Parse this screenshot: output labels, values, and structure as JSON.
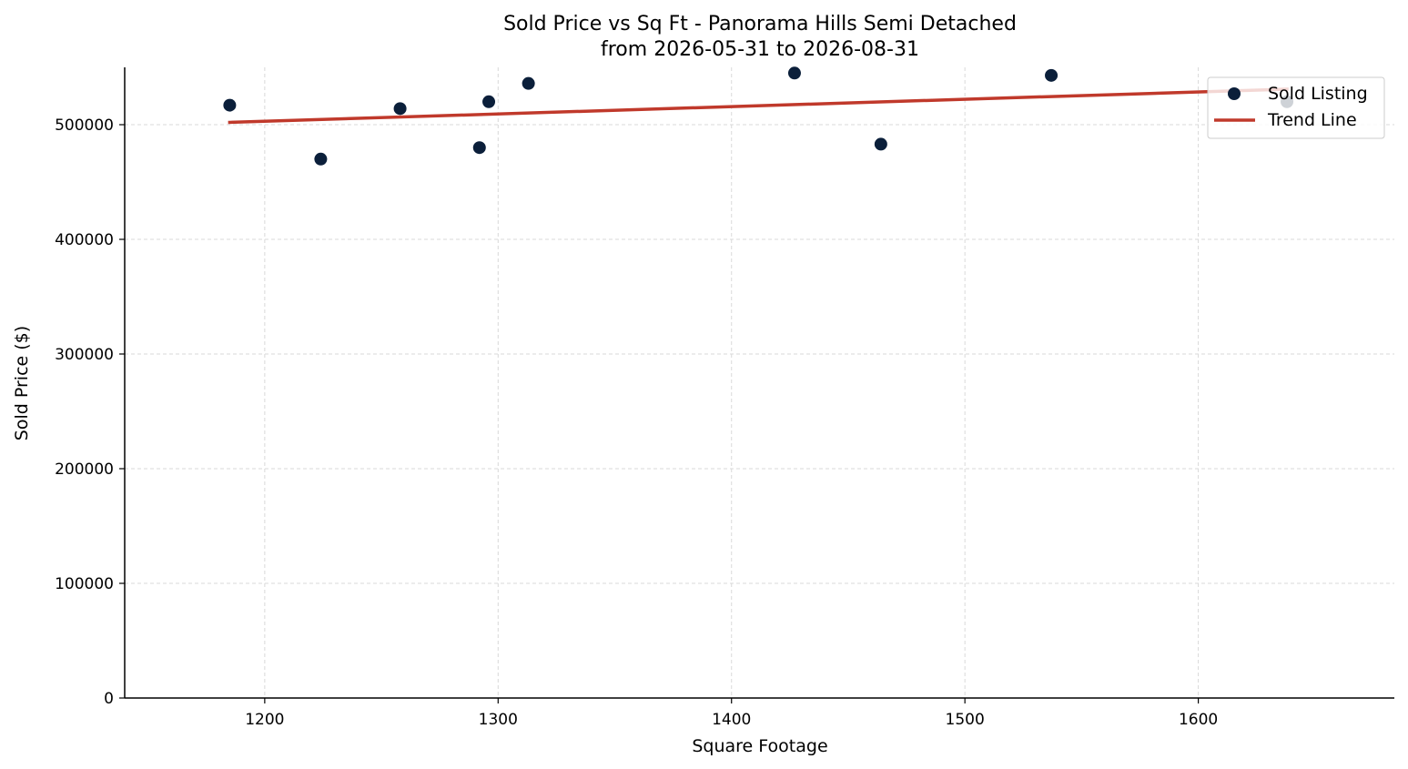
{
  "chart_data": {
    "type": "scatter",
    "title": "Sold Price vs Sq Ft - Panorama Hills Semi Detached",
    "subtitle": "from 2026-05-31 to 2026-08-31",
    "xlabel": "Square Footage",
    "ylabel": "Sold Price ($)",
    "xlim": [
      1140,
      1684
    ],
    "ylim": [
      0,
      550000
    ],
    "x_ticks": [
      1200,
      1300,
      1400,
      1500,
      1600
    ],
    "y_ticks": [
      0,
      100000,
      200000,
      300000,
      400000,
      500000
    ],
    "grid": true,
    "legend_position": "top-right",
    "series": [
      {
        "name": "Sold Listing",
        "kind": "scatter",
        "color": "#0b1f3a",
        "points": [
          {
            "x": 1185,
            "y": 517000
          },
          {
            "x": 1224,
            "y": 470000
          },
          {
            "x": 1258,
            "y": 514000
          },
          {
            "x": 1292,
            "y": 480000
          },
          {
            "x": 1296,
            "y": 520000
          },
          {
            "x": 1313,
            "y": 536000
          },
          {
            "x": 1427,
            "y": 545000
          },
          {
            "x": 1464,
            "y": 483000
          },
          {
            "x": 1537,
            "y": 543000
          },
          {
            "x": 1638,
            "y": 520000
          }
        ]
      },
      {
        "name": "Trend Line",
        "kind": "line",
        "color": "#c0392b",
        "points": [
          {
            "x": 1185,
            "y": 502000
          },
          {
            "x": 1638,
            "y": 531000
          }
        ]
      }
    ]
  }
}
